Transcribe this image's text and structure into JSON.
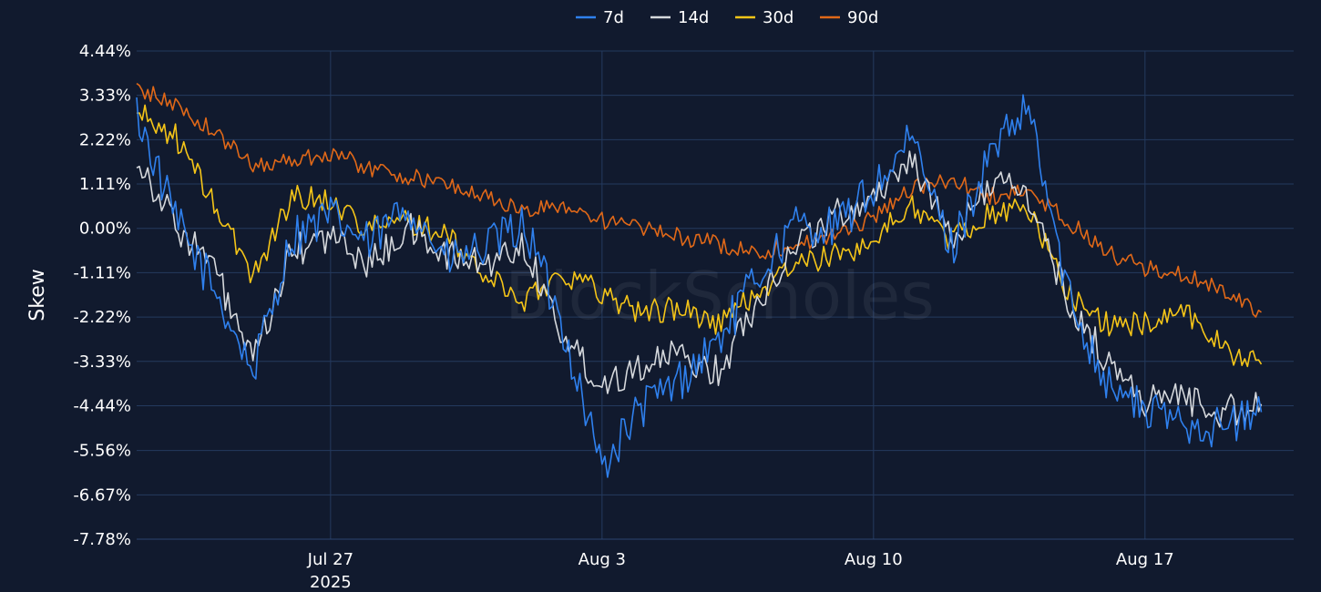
{
  "chart_data": {
    "type": "line",
    "ylabel": "Skew",
    "xlabel": "",
    "watermark": "BlockScholes",
    "ylim": [
      -7.78,
      4.44
    ],
    "y_ticks": [
      "4.44%",
      "3.33%",
      "2.22%",
      "1.11%",
      "0.00%",
      "-1.11%",
      "-2.22%",
      "-3.33%",
      "-4.44%",
      "-5.56%",
      "-6.67%",
      "-7.78%"
    ],
    "y_tick_values": [
      4.44,
      3.33,
      2.22,
      1.11,
      0.0,
      -1.11,
      -2.22,
      -3.33,
      -4.44,
      -5.56,
      -6.67,
      -7.78
    ],
    "xlim": [
      "2025-07-22",
      "2025-08-20"
    ],
    "x_ticks": [
      {
        "date": "2025-07-27",
        "label": "Jul 27",
        "sublabel": "2025"
      },
      {
        "date": "2025-08-03",
        "label": "Aug 3",
        "sublabel": ""
      },
      {
        "date": "2025-08-10",
        "label": "Aug 10",
        "sublabel": ""
      },
      {
        "date": "2025-08-17",
        "label": "Aug 17",
        "sublabel": ""
      }
    ],
    "grid": true,
    "legend_position": "top-center",
    "series": [
      {
        "name": "7d",
        "color": "#2f80ed",
        "points": [
          [
            "2025-07-22",
            2.9
          ],
          [
            "2025-07-23",
            0.2
          ],
          [
            "2025-07-24",
            -1.5
          ],
          [
            "2025-07-25",
            -3.6
          ],
          [
            "2025-07-26",
            -0.2
          ],
          [
            "2025-07-27",
            0.3
          ],
          [
            "2025-07-28",
            -0.4
          ],
          [
            "2025-07-29",
            0.6
          ],
          [
            "2025-07-30",
            -0.8
          ],
          [
            "2025-07-31",
            -0.5
          ],
          [
            "2025-08-01",
            0.1
          ],
          [
            "2025-08-02",
            -2.5
          ],
          [
            "2025-08-03",
            -6.0
          ],
          [
            "2025-08-04",
            -4.5
          ],
          [
            "2025-08-05",
            -3.8
          ],
          [
            "2025-08-06",
            -2.8
          ],
          [
            "2025-08-07",
            -1.2
          ],
          [
            "2025-08-08",
            0.1
          ],
          [
            "2025-08-09",
            0.0
          ],
          [
            "2025-08-10",
            1.0
          ],
          [
            "2025-08-11",
            2.2
          ],
          [
            "2025-08-12",
            -0.5
          ],
          [
            "2025-08-13",
            1.8
          ],
          [
            "2025-08-14",
            3.0
          ],
          [
            "2025-08-15",
            -1.6
          ],
          [
            "2025-08-16",
            -3.8
          ],
          [
            "2025-08-17",
            -4.6
          ],
          [
            "2025-08-18",
            -4.8
          ],
          [
            "2025-08-19",
            -5.0
          ],
          [
            "2025-08-20",
            -4.6
          ]
        ]
      },
      {
        "name": "14d",
        "color": "#d5d8dc",
        "points": [
          [
            "2025-07-22",
            1.8
          ],
          [
            "2025-07-23",
            0.1
          ],
          [
            "2025-07-24",
            -1.0
          ],
          [
            "2025-07-25",
            -3.4
          ],
          [
            "2025-07-26",
            -0.6
          ],
          [
            "2025-07-27",
            -0.2
          ],
          [
            "2025-07-28",
            -0.9
          ],
          [
            "2025-07-29",
            0.0
          ],
          [
            "2025-07-30",
            -0.7
          ],
          [
            "2025-07-31",
            -0.9
          ],
          [
            "2025-08-01",
            -0.4
          ],
          [
            "2025-08-02",
            -2.7
          ],
          [
            "2025-08-03",
            -3.9
          ],
          [
            "2025-08-04",
            -3.4
          ],
          [
            "2025-08-05",
            -3.2
          ],
          [
            "2025-08-06",
            -3.6
          ],
          [
            "2025-08-07",
            -1.8
          ],
          [
            "2025-08-08",
            -0.4
          ],
          [
            "2025-08-09",
            0.3
          ],
          [
            "2025-08-10",
            0.8
          ],
          [
            "2025-08-11",
            1.8
          ],
          [
            "2025-08-12",
            -0.4
          ],
          [
            "2025-08-13",
            1.2
          ],
          [
            "2025-08-14",
            0.8
          ],
          [
            "2025-08-15",
            -1.8
          ],
          [
            "2025-08-16",
            -3.3
          ],
          [
            "2025-08-17",
            -4.3
          ],
          [
            "2025-08-18",
            -4.2
          ],
          [
            "2025-08-19",
            -4.6
          ],
          [
            "2025-08-20",
            -4.4
          ]
        ]
      },
      {
        "name": "30d",
        "color": "#f5c518",
        "points": [
          [
            "2025-07-22",
            2.9
          ],
          [
            "2025-07-23",
            2.3
          ],
          [
            "2025-07-24",
            0.6
          ],
          [
            "2025-07-25",
            -1.2
          ],
          [
            "2025-07-26",
            0.8
          ],
          [
            "2025-07-27",
            0.7
          ],
          [
            "2025-07-28",
            0.0
          ],
          [
            "2025-07-29",
            0.2
          ],
          [
            "2025-07-30",
            -0.2
          ],
          [
            "2025-07-31",
            -1.2
          ],
          [
            "2025-08-01",
            -1.8
          ],
          [
            "2025-08-02",
            -1.1
          ],
          [
            "2025-08-03",
            -1.6
          ],
          [
            "2025-08-04",
            -2.1
          ],
          [
            "2025-08-05",
            -2.0
          ],
          [
            "2025-08-06",
            -2.4
          ],
          [
            "2025-08-07",
            -1.6
          ],
          [
            "2025-08-08",
            -0.9
          ],
          [
            "2025-08-09",
            -0.7
          ],
          [
            "2025-08-10",
            -0.3
          ],
          [
            "2025-08-11",
            0.6
          ],
          [
            "2025-08-12",
            -0.3
          ],
          [
            "2025-08-13",
            0.4
          ],
          [
            "2025-08-14",
            0.5
          ],
          [
            "2025-08-15",
            -1.6
          ],
          [
            "2025-08-16",
            -2.4
          ],
          [
            "2025-08-17",
            -2.4
          ],
          [
            "2025-08-18",
            -2.0
          ],
          [
            "2025-08-19",
            -3.0
          ],
          [
            "2025-08-20",
            -3.4
          ]
        ]
      },
      {
        "name": "90d",
        "color": "#e06818",
        "points": [
          [
            "2025-07-22",
            3.5
          ],
          [
            "2025-07-23",
            3.1
          ],
          [
            "2025-07-24",
            2.4
          ],
          [
            "2025-07-25",
            1.6
          ],
          [
            "2025-07-26",
            1.7
          ],
          [
            "2025-07-27",
            1.9
          ],
          [
            "2025-07-28",
            1.5
          ],
          [
            "2025-07-29",
            1.3
          ],
          [
            "2025-07-30",
            1.1
          ],
          [
            "2025-07-31",
            0.8
          ],
          [
            "2025-08-01",
            0.4
          ],
          [
            "2025-08-02",
            0.6
          ],
          [
            "2025-08-03",
            0.2
          ],
          [
            "2025-08-04",
            0.0
          ],
          [
            "2025-08-05",
            -0.2
          ],
          [
            "2025-08-06",
            -0.4
          ],
          [
            "2025-08-07",
            -0.6
          ],
          [
            "2025-08-08",
            -0.4
          ],
          [
            "2025-08-09",
            -0.2
          ],
          [
            "2025-08-10",
            0.3
          ],
          [
            "2025-08-11",
            1.0
          ],
          [
            "2025-08-12",
            1.2
          ],
          [
            "2025-08-13",
            0.8
          ],
          [
            "2025-08-14",
            0.9
          ],
          [
            "2025-08-15",
            0.2
          ],
          [
            "2025-08-16",
            -0.6
          ],
          [
            "2025-08-17",
            -1.0
          ],
          [
            "2025-08-18",
            -1.2
          ],
          [
            "2025-08-19",
            -1.5
          ],
          [
            "2025-08-20",
            -2.1
          ]
        ]
      }
    ]
  }
}
